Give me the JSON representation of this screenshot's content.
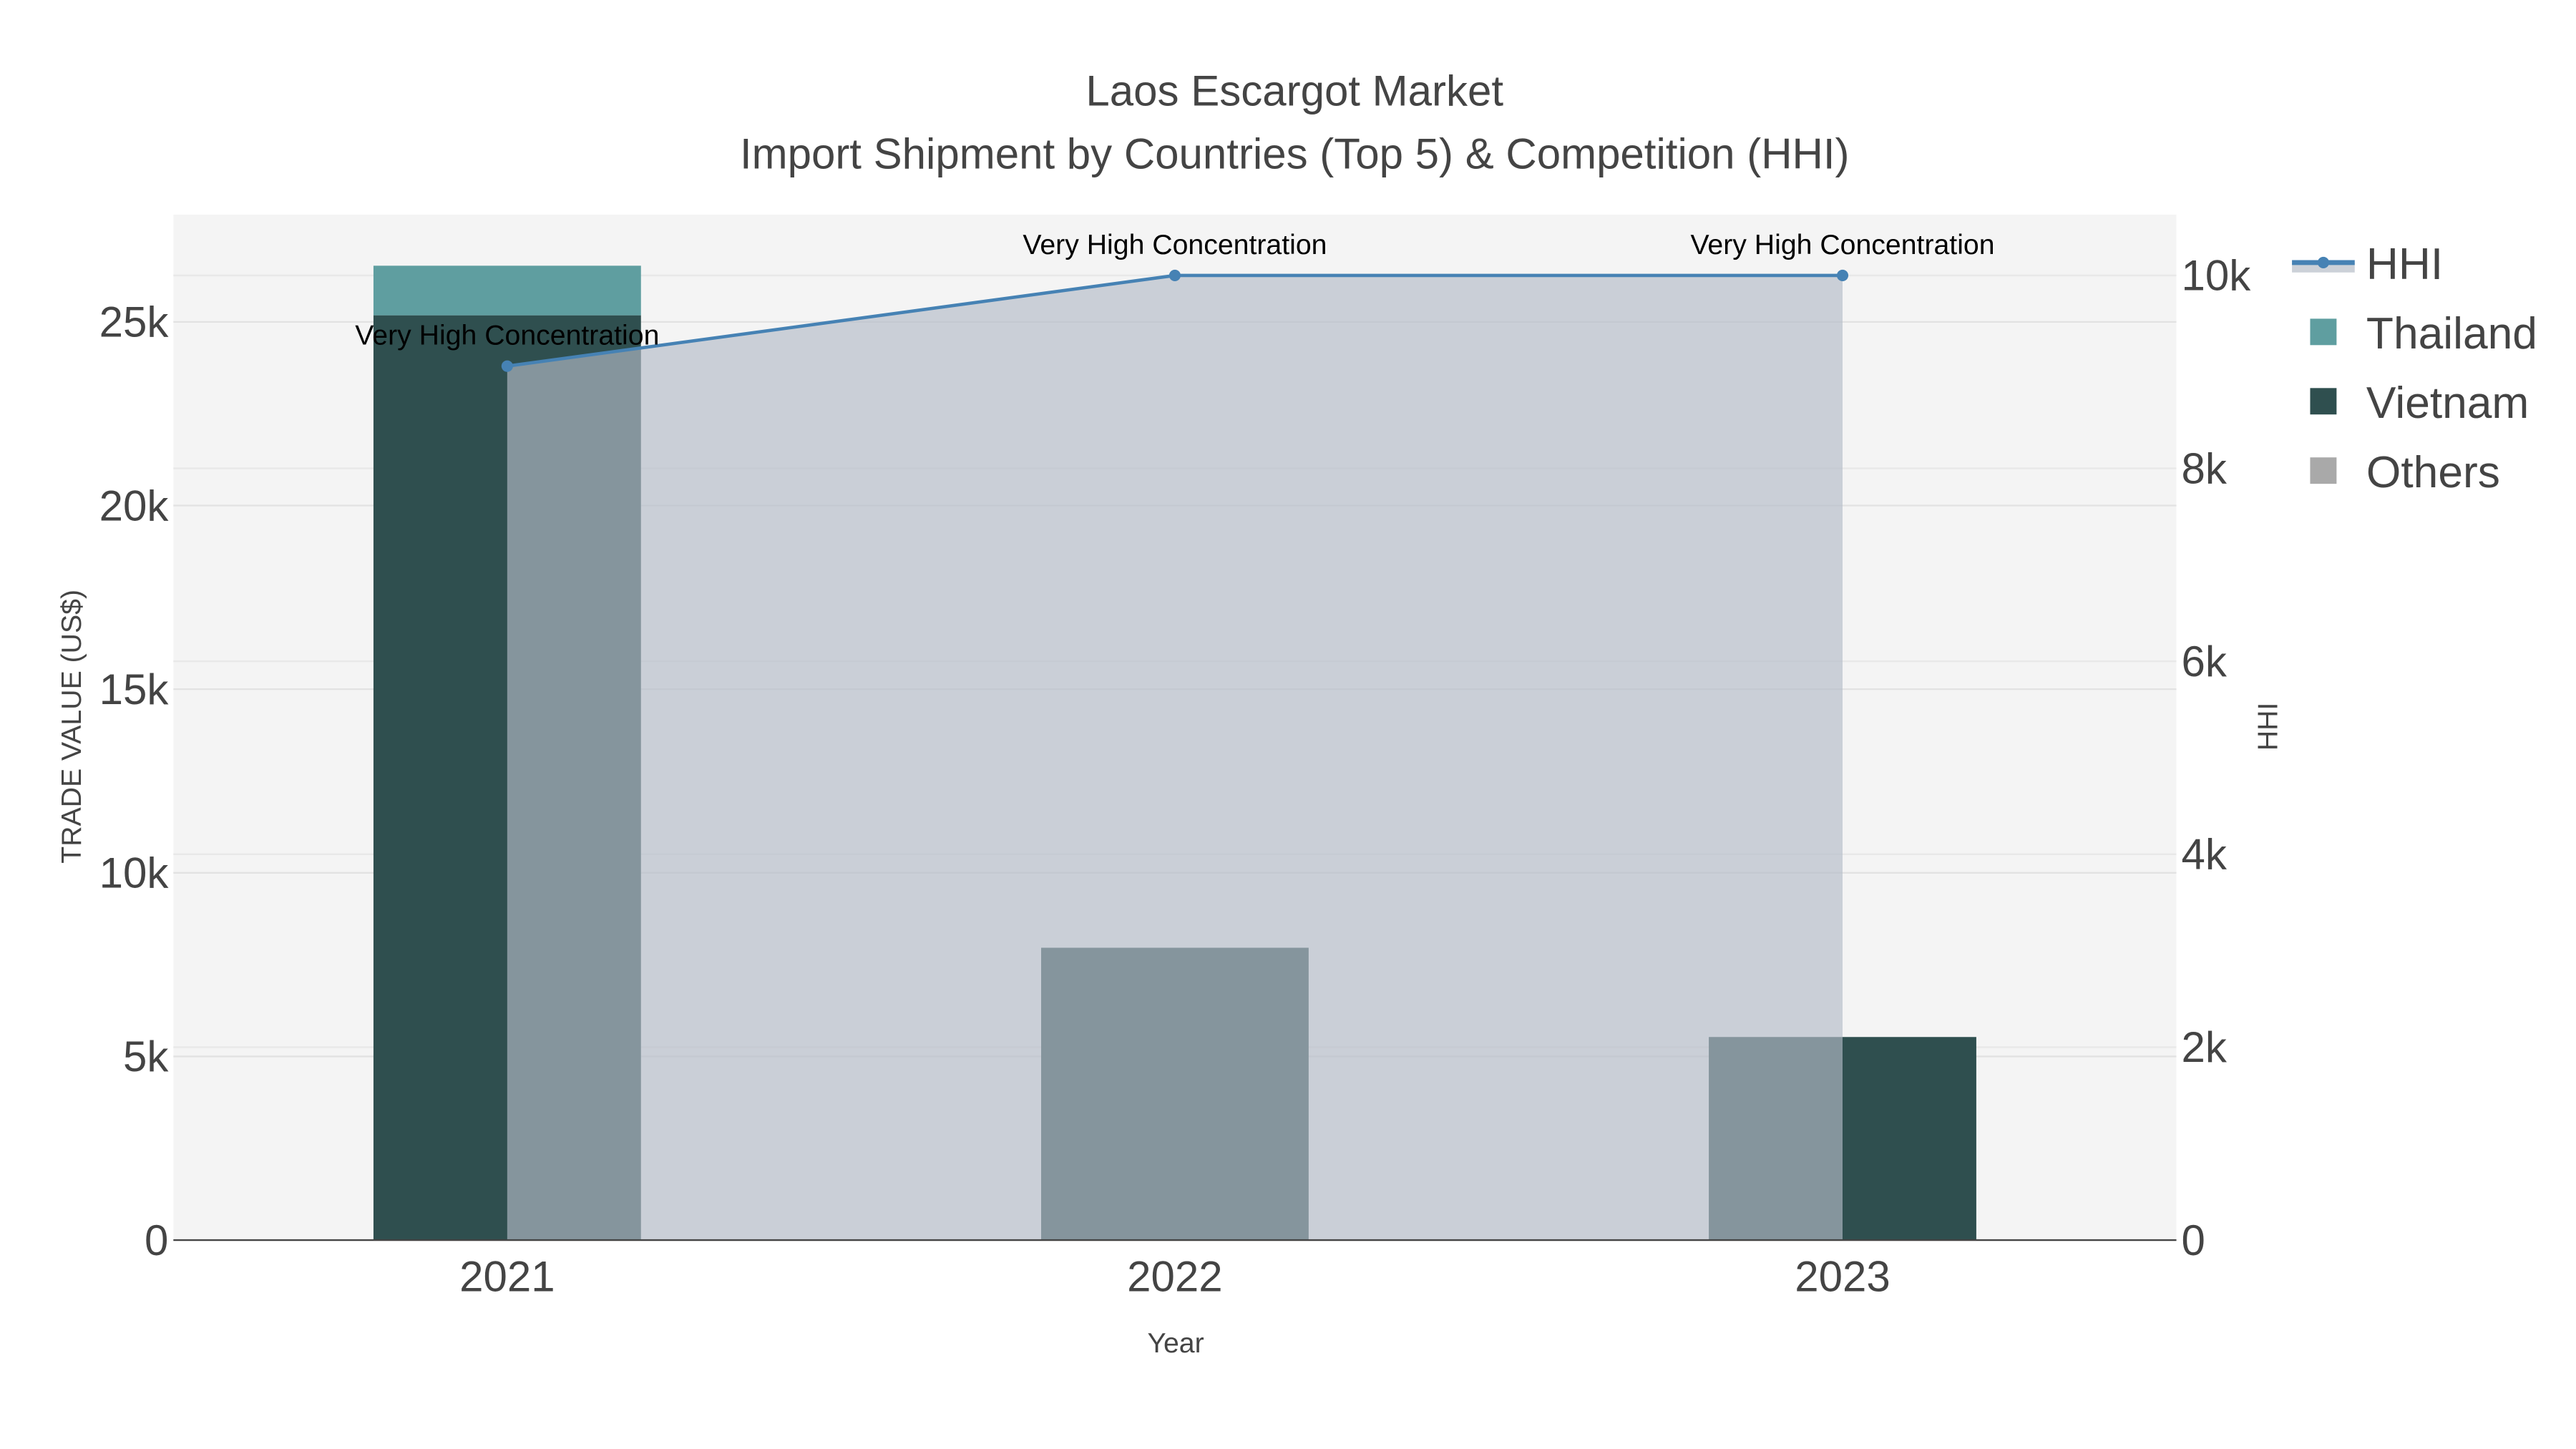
{
  "chart_data": {
    "type": "bar",
    "title": "Laos Escargot Market",
    "subtitle": "Import Shipment by Countries (Top 5) & Competition (HHI)",
    "xlabel": "Year",
    "ylabel": "TRADE VALUE (US$)",
    "y2label": "HHI",
    "categories": [
      "2021",
      "2022",
      "2023"
    ],
    "barmode": "stack",
    "series": [
      {
        "name": "Vietnam",
        "type": "bar",
        "color": "#2f4f4f",
        "values": [
          25180,
          7960,
          5530
        ]
      },
      {
        "name": "Thailand",
        "type": "bar",
        "color": "#5f9ea0",
        "values": [
          1350,
          0,
          0
        ]
      },
      {
        "name": "Others",
        "type": "bar",
        "color": "#a9a9a9",
        "values": [
          0,
          0,
          0
        ]
      },
      {
        "name": "HHI",
        "type": "line",
        "axis": "y2",
        "color": "#4682b4",
        "fill": "tozeroy",
        "values": [
          9060,
          10000,
          10000
        ],
        "labels": [
          "Very High Concentration",
          "Very High Concentration",
          "Very High Concentration"
        ]
      }
    ],
    "ylim": [
      0,
      27920
    ],
    "y2lim": [
      0,
      10630
    ],
    "yticks": [
      {
        "v": 0,
        "t": "0"
      },
      {
        "v": 5000,
        "t": "5k"
      },
      {
        "v": 10000,
        "t": "10k"
      },
      {
        "v": 15000,
        "t": "15k"
      },
      {
        "v": 20000,
        "t": "20k"
      },
      {
        "v": 25000,
        "t": "25k"
      }
    ],
    "y2ticks": [
      {
        "v": 0,
        "t": "0"
      },
      {
        "v": 2000,
        "t": "2k"
      },
      {
        "v": 4000,
        "t": "4k"
      },
      {
        "v": 6000,
        "t": "6k"
      },
      {
        "v": 8000,
        "t": "8k"
      },
      {
        "v": 10000,
        "t": "10k"
      }
    ],
    "legend": {
      "placement": "top-right",
      "items": [
        "HHI",
        "Thailand",
        "Vietnam",
        "Others"
      ]
    },
    "grid": true
  }
}
